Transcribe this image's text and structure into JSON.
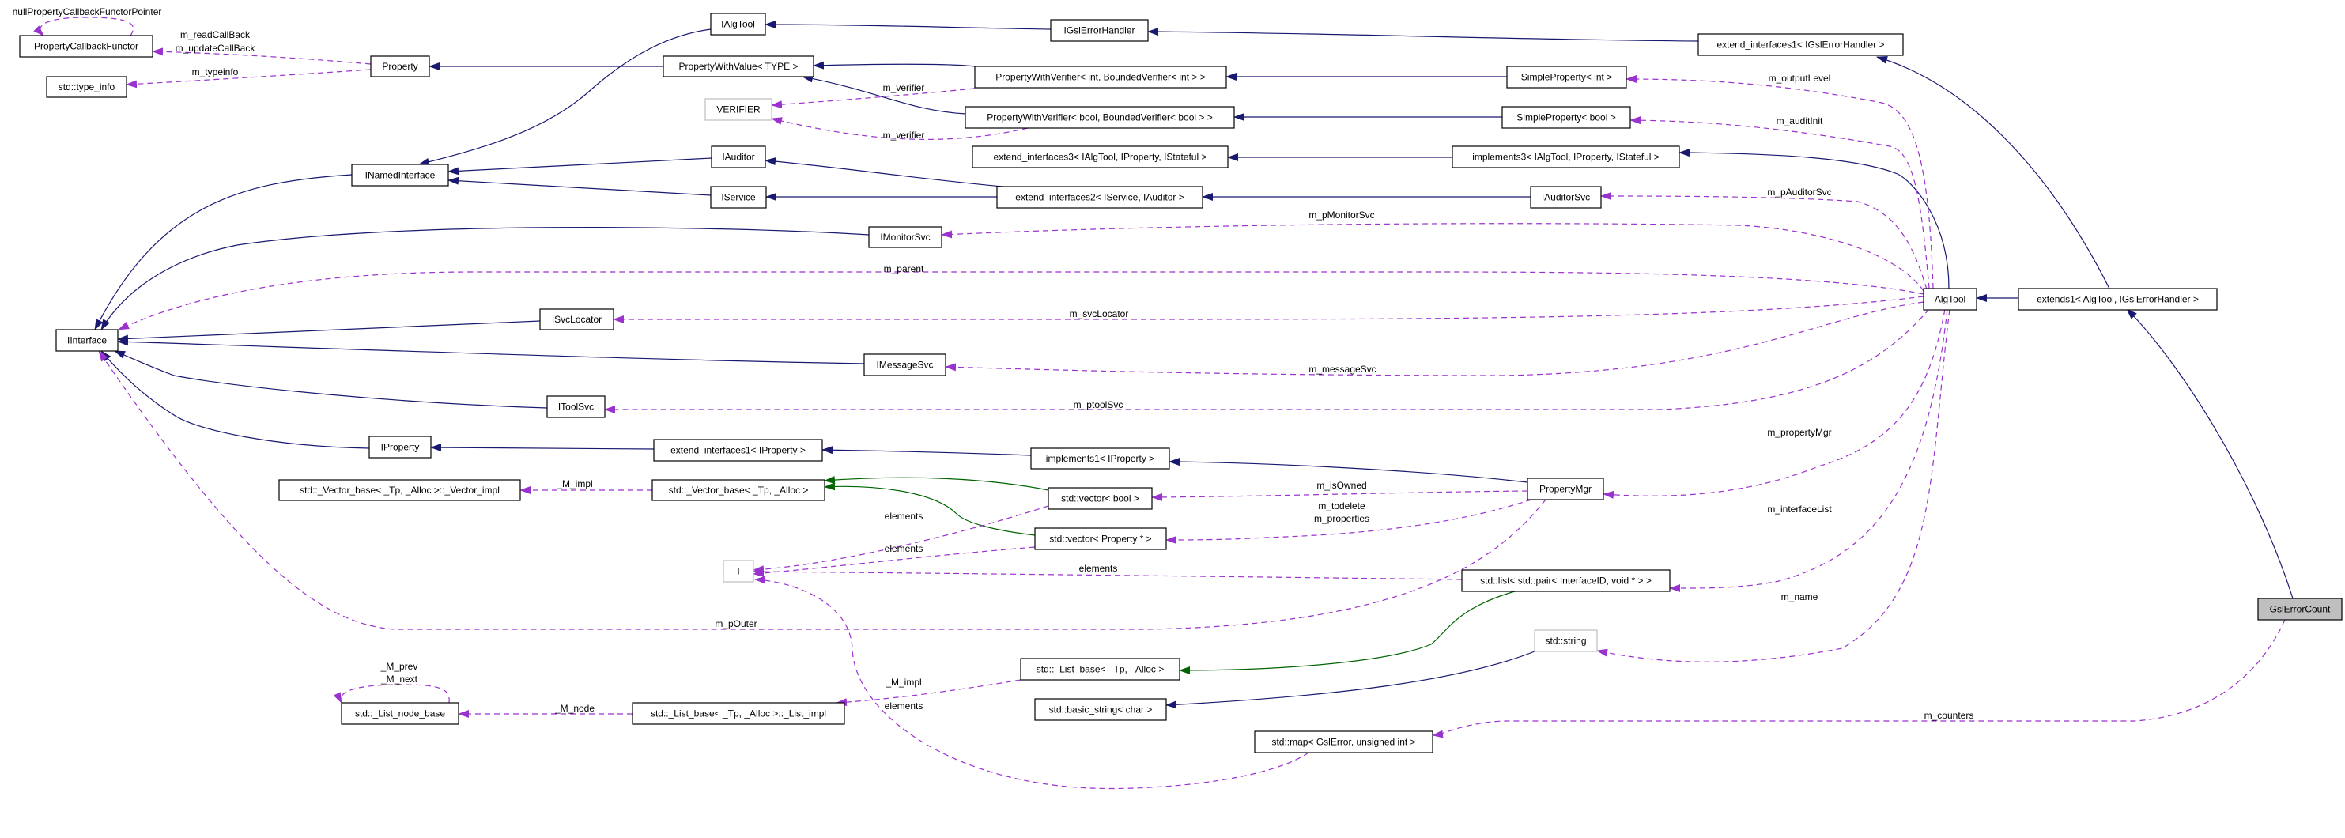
{
  "colors": {
    "inheritance": "#191970",
    "usage": "#9a32cd",
    "template": "#006400",
    "highlight_fill": "#bfbfbf",
    "undocumented_border": "#bfbfbf"
  },
  "nodes": [
    {
      "id": "GslErrorCount",
      "label": "GslErrorCount",
      "style": "highlight"
    },
    {
      "id": "extends1",
      "label": "extends1< AlgTool, IGslErrorHandler >",
      "style": "normal"
    },
    {
      "id": "AlgTool",
      "label": "AlgTool",
      "style": "normal"
    },
    {
      "id": "ext1IGsl",
      "label": "extend_interfaces1< IGslErrorHandler >",
      "style": "normal"
    },
    {
      "id": "IGslErrorHandler",
      "label": "IGslErrorHandler",
      "style": "normal"
    },
    {
      "id": "IAlgTool",
      "label": "IAlgTool",
      "style": "normal"
    },
    {
      "id": "INamedInterface",
      "label": "INamedInterface",
      "style": "normal"
    },
    {
      "id": "IInterface",
      "label": "IInterface",
      "style": "normal"
    },
    {
      "id": "PropertyCallbackFunctor",
      "label": "PropertyCallbackFunctor",
      "style": "normal"
    },
    {
      "id": "type_info",
      "label": "std::type_info",
      "style": "normal"
    },
    {
      "id": "Property",
      "label": "Property",
      "style": "normal"
    },
    {
      "id": "PWV",
      "label": "PropertyWithValue< TYPE >",
      "style": "normal"
    },
    {
      "id": "VERIFIER",
      "label": "VERIFIER",
      "style": "gray"
    },
    {
      "id": "PWVint",
      "label": "PropertyWithVerifier< int, BoundedVerifier< int > >",
      "style": "normal"
    },
    {
      "id": "PWVbool",
      "label": "PropertyWithVerifier< bool, BoundedVerifier< bool > >",
      "style": "normal"
    },
    {
      "id": "SPint",
      "label": "SimpleProperty< int >",
      "style": "normal"
    },
    {
      "id": "SPbool",
      "label": "SimpleProperty< bool >",
      "style": "normal"
    },
    {
      "id": "ext3",
      "label": "extend_interfaces3< IAlgTool, IProperty, IStateful >",
      "style": "normal"
    },
    {
      "id": "impl3",
      "label": "implements3< IAlgTool, IProperty, IStateful >",
      "style": "normal"
    },
    {
      "id": "IAuditor",
      "label": "IAuditor",
      "style": "normal"
    },
    {
      "id": "IService",
      "label": "IService",
      "style": "normal"
    },
    {
      "id": "ext2",
      "label": "extend_interfaces2< IService, IAuditor >",
      "style": "normal"
    },
    {
      "id": "IAuditorSvc",
      "label": "IAuditorSvc",
      "style": "normal"
    },
    {
      "id": "IMonitorSvc",
      "label": "IMonitorSvc",
      "style": "normal"
    },
    {
      "id": "ISvcLocator",
      "label": "ISvcLocator",
      "style": "normal"
    },
    {
      "id": "IMessageSvc",
      "label": "IMessageSvc",
      "style": "normal"
    },
    {
      "id": "IToolSvc",
      "label": "IToolSvc",
      "style": "normal"
    },
    {
      "id": "IProperty",
      "label": "IProperty",
      "style": "normal"
    },
    {
      "id": "ext1IProperty",
      "label": "extend_interfaces1< IProperty >",
      "style": "normal"
    },
    {
      "id": "impl1",
      "label": "implements1< IProperty >",
      "style": "normal"
    },
    {
      "id": "PropertyMgr",
      "label": "PropertyMgr",
      "style": "normal"
    },
    {
      "id": "VectorImpl",
      "label": "std::_Vector_base< _Tp, _Alloc >::_Vector_impl",
      "style": "normal"
    },
    {
      "id": "VectorBase",
      "label": "std::_Vector_base< _Tp, _Alloc >",
      "style": "normal"
    },
    {
      "id": "vecbool",
      "label": "std::vector< bool >",
      "style": "normal"
    },
    {
      "id": "vecProp",
      "label": "std::vector< Property * >",
      "style": "normal"
    },
    {
      "id": "T",
      "label": "T",
      "style": "gray"
    },
    {
      "id": "list",
      "label": "std::list< std::pair< InterfaceID, void * > >",
      "style": "normal"
    },
    {
      "id": "string",
      "label": "std::string",
      "style": "gray"
    },
    {
      "id": "ListBase",
      "label": "std::_List_base< _Tp, _Alloc >",
      "style": "normal"
    },
    {
      "id": "basicString",
      "label": "std::basic_string< char >",
      "style": "normal"
    },
    {
      "id": "ListImpl",
      "label": "std::_List_base< _Tp, _Alloc >::_List_impl",
      "style": "normal"
    },
    {
      "id": "ListNodeBase",
      "label": "std::_List_node_base",
      "style": "normal"
    },
    {
      "id": "map",
      "label": "std::map< GslError, unsigned int >",
      "style": "normal"
    }
  ],
  "edges": [
    {
      "from": "IAlgTool",
      "to": "INamedInterface",
      "kind": "inheritance",
      "labels": []
    },
    {
      "from": "PWV",
      "to": "Property",
      "kind": "inheritance",
      "labels": []
    },
    {
      "from": "INamedInterface",
      "to": "IInterface",
      "kind": "inheritance",
      "labels": []
    },
    {
      "from": "IAuditor",
      "to": "INamedInterface",
      "kind": "inheritance",
      "labels": []
    },
    {
      "from": "IService",
      "to": "INamedInterface",
      "kind": "inheritance",
      "labels": []
    },
    {
      "from": "IGslErrorHandler",
      "to": "IAlgTool",
      "kind": "inheritance",
      "labels": []
    },
    {
      "from": "ext1IGsl",
      "to": "IGslErrorHandler",
      "kind": "inheritance",
      "labels": []
    },
    {
      "from": "PWVint",
      "to": "PWV",
      "kind": "inheritance",
      "labels": []
    },
    {
      "from": "PWVbool",
      "to": "PWV",
      "kind": "inheritance",
      "labels": []
    },
    {
      "from": "SPint",
      "to": "PWVint",
      "kind": "inheritance",
      "labels": []
    },
    {
      "from": "SPbool",
      "to": "PWVbool",
      "kind": "inheritance",
      "labels": []
    },
    {
      "from": "impl3",
      "to": "ext3",
      "kind": "inheritance",
      "labels": []
    },
    {
      "from": "ext2",
      "to": "IAuditor",
      "kind": "inheritance",
      "labels": []
    },
    {
      "from": "ext2",
      "to": "IService",
      "kind": "inheritance",
      "labels": []
    },
    {
      "from": "IAuditorSvc",
      "to": "ext2",
      "kind": "inheritance",
      "labels": []
    },
    {
      "from": "IMonitorSvc",
      "to": "IInterface",
      "kind": "inheritance",
      "labels": []
    },
    {
      "from": "ISvcLocator",
      "to": "IInterface",
      "kind": "inheritance",
      "labels": []
    },
    {
      "from": "IMessageSvc",
      "to": "IInterface",
      "kind": "inheritance",
      "labels": []
    },
    {
      "from": "IToolSvc",
      "to": "IInterface",
      "kind": "inheritance",
      "labels": []
    },
    {
      "from": "IProperty",
      "to": "IInterface",
      "kind": "inheritance",
      "labels": []
    },
    {
      "from": "ext1IProperty",
      "to": "IProperty",
      "kind": "inheritance",
      "labels": []
    },
    {
      "from": "impl1",
      "to": "ext1IProperty",
      "kind": "inheritance",
      "labels": []
    },
    {
      "from": "PropertyMgr",
      "to": "impl1",
      "kind": "inheritance",
      "labels": []
    },
    {
      "from": "AlgTool",
      "to": "impl3",
      "kind": "inheritance",
      "labels": []
    },
    {
      "from": "extends1",
      "to": "AlgTool",
      "kind": "inheritance",
      "labels": []
    },
    {
      "from": "extends1",
      "to": "ext1IGsl",
      "kind": "inheritance",
      "labels": []
    },
    {
      "from": "GslErrorCount",
      "to": "extends1",
      "kind": "inheritance",
      "labels": []
    },
    {
      "from": "string",
      "to": "basicString",
      "kind": "inheritance",
      "labels": []
    },
    {
      "from": "vecbool",
      "to": "VectorBase",
      "kind": "template",
      "labels": []
    },
    {
      "from": "vecProp",
      "to": "VectorBase",
      "kind": "template",
      "labels": []
    },
    {
      "from": "list",
      "to": "ListBase",
      "kind": "template",
      "labels": []
    },
    {
      "from": "PropertyCallbackFunctor",
      "to": "PropertyCallbackFunctor",
      "kind": "usage",
      "labels": [
        "nullPropertyCallbackFunctorPointer"
      ]
    },
    {
      "from": "Property",
      "to": "PropertyCallbackFunctor",
      "kind": "usage",
      "labels": [
        "m_readCallBack",
        "m_updateCallBack"
      ]
    },
    {
      "from": "Property",
      "to": "type_info",
      "kind": "usage",
      "labels": [
        "m_typeinfo"
      ]
    },
    {
      "from": "PWVint",
      "to": "VERIFIER",
      "kind": "usage",
      "labels": [
        "m_verifier"
      ]
    },
    {
      "from": "PWVbool",
      "to": "VERIFIER",
      "kind": "usage",
      "labels": [
        "m_verifier"
      ]
    },
    {
      "from": "AlgTool",
      "to": "SPint",
      "kind": "usage",
      "labels": [
        "m_outputLevel"
      ]
    },
    {
      "from": "AlgTool",
      "to": "SPbool",
      "kind": "usage",
      "labels": [
        "m_auditInit"
      ]
    },
    {
      "from": "AlgTool",
      "to": "IAuditorSvc",
      "kind": "usage",
      "labels": [
        "m_pAuditorSvc"
      ]
    },
    {
      "from": "AlgTool",
      "to": "IMonitorSvc",
      "kind": "usage",
      "labels": [
        "m_pMonitorSvc"
      ]
    },
    {
      "from": "AlgTool",
      "to": "IInterface",
      "kind": "usage",
      "labels": [
        "m_parent"
      ]
    },
    {
      "from": "AlgTool",
      "to": "ISvcLocator",
      "kind": "usage",
      "labels": [
        "m_svcLocator"
      ]
    },
    {
      "from": "AlgTool",
      "to": "IMessageSvc",
      "kind": "usage",
      "labels": [
        "m_messageSvc"
      ]
    },
    {
      "from": "AlgTool",
      "to": "IToolSvc",
      "kind": "usage",
      "labels": [
        "m_ptoolSvc"
      ]
    },
    {
      "from": "AlgTool",
      "to": "PropertyMgr",
      "kind": "usage",
      "labels": [
        "m_propertyMgr"
      ]
    },
    {
      "from": "AlgTool",
      "to": "list",
      "kind": "usage",
      "labels": [
        "m_interfaceList"
      ]
    },
    {
      "from": "AlgTool",
      "to": "string",
      "kind": "usage",
      "labels": [
        "m_name"
      ]
    },
    {
      "from": "PropertyMgr",
      "to": "vecbool",
      "kind": "usage",
      "labels": [
        "m_isOwned"
      ]
    },
    {
      "from": "PropertyMgr",
      "to": "vecProp",
      "kind": "usage",
      "labels": [
        "m_todelete",
        "m_properties"
      ]
    },
    {
      "from": "PropertyMgr",
      "to": "IInterface",
      "kind": "usage",
      "labels": [
        "m_pOuter"
      ]
    },
    {
      "from": "vecbool",
      "to": "T",
      "kind": "usage",
      "labels": [
        "elements"
      ]
    },
    {
      "from": "vecProp",
      "to": "T",
      "kind": "usage",
      "labels": [
        "elements"
      ]
    },
    {
      "from": "list",
      "to": "T",
      "kind": "usage",
      "labels": [
        "elements"
      ]
    },
    {
      "from": "VectorBase",
      "to": "VectorImpl",
      "kind": "usage",
      "labels": [
        "_M_impl"
      ]
    },
    {
      "from": "ListBase",
      "to": "ListImpl",
      "kind": "usage",
      "labels": [
        "_M_impl"
      ]
    },
    {
      "from": "ListImpl",
      "to": "ListNodeBase",
      "kind": "usage",
      "labels": [
        "_M_node"
      ]
    },
    {
      "from": "ListNodeBase",
      "to": "ListNodeBase",
      "kind": "usage",
      "labels": [
        "_M_prev",
        "_M_next"
      ]
    },
    {
      "from": "map",
      "to": "T",
      "kind": "usage",
      "labels": [
        "elements"
      ]
    },
    {
      "from": "GslErrorCount",
      "to": "map",
      "kind": "usage",
      "labels": [
        "m_counters"
      ]
    }
  ]
}
